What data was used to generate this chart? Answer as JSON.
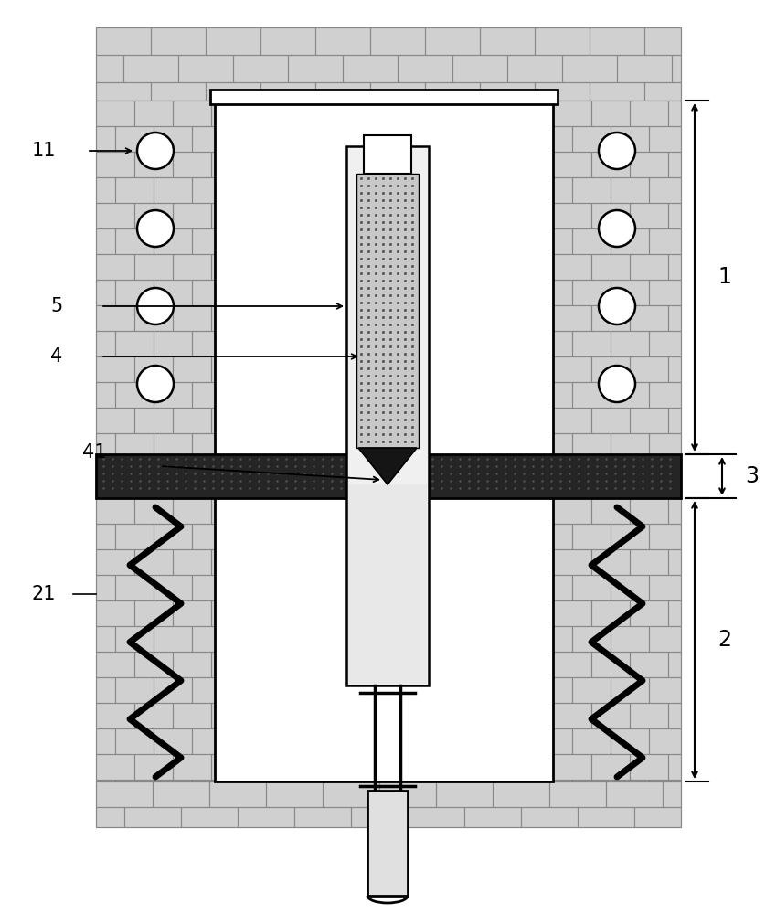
{
  "bg_color": "#ffffff",
  "brick_light": "#d8d8d8",
  "brick_edge": "#888888",
  "band_color": "#2a2a2a",
  "white": "#ffffff",
  "black": "#000000",
  "light_gray": "#e8e8e8",
  "dot_color": "#999999",
  "figure_width": 8.49,
  "figure_height": 10.0
}
